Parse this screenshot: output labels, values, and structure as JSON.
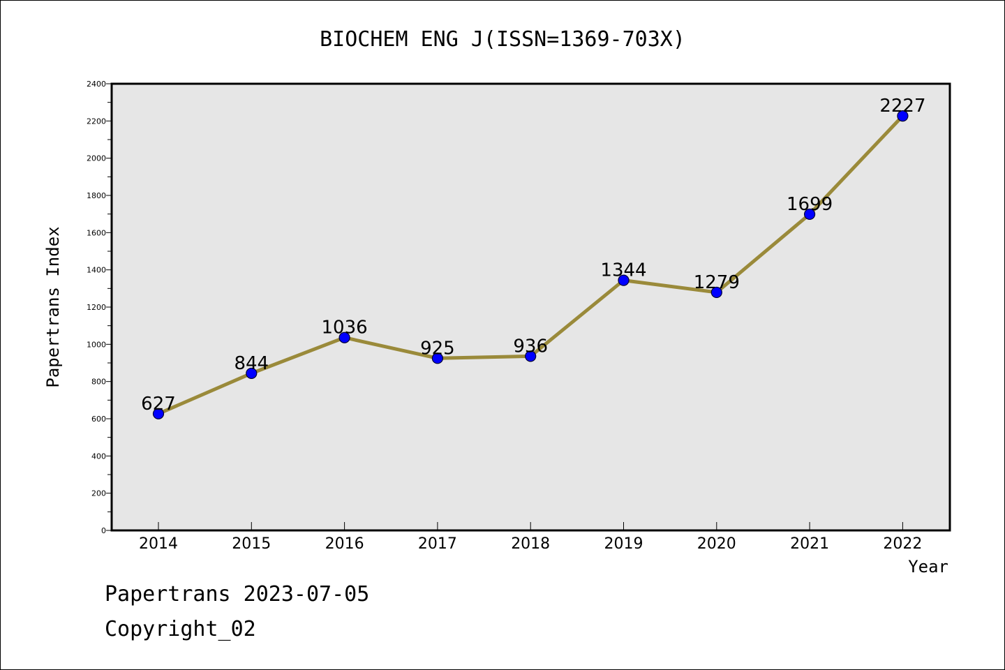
{
  "chart_data": {
    "type": "line",
    "title": "BIOCHEM ENG J(ISSN=1369-703X)",
    "xlabel": "Year",
    "ylabel": "Papertrans Index",
    "categories": [
      "2014",
      "2015",
      "2016",
      "2017",
      "2018",
      "2019",
      "2020",
      "2021",
      "2022"
    ],
    "series": [
      {
        "values": [
          627,
          844,
          1036,
          925,
          936,
          1344,
          1279,
          1699,
          2227
        ]
      }
    ],
    "ylim": [
      0,
      2400
    ],
    "yticks": [
      0,
      200,
      400,
      600,
      800,
      1000,
      1200,
      1400,
      1600,
      1800,
      2000,
      2200,
      2400
    ],
    "grid": false,
    "data_labels": true,
    "colors": {
      "line": "#9a8a3a",
      "marker_fill": "#0000ff",
      "marker_stroke": "#000033",
      "plot_background": "#e6e6e6"
    }
  },
  "footer": {
    "date_text": "Papertrans 2023-07-05",
    "copyright_text": "Copyright_02"
  }
}
